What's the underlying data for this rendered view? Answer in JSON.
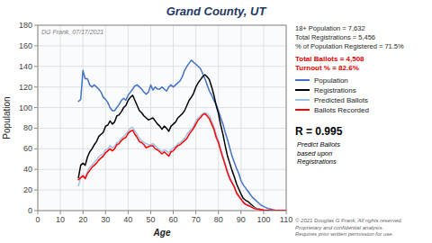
{
  "chart_data": {
    "type": "line",
    "title": "Grand County, UT",
    "xlabel": "Age",
    "ylabel": "Population",
    "annotations": [
      "DG Frank, 07/17/2021",
      "© 2021 Douglas G Frank, All rights reserved.\nProprietary and confidential analysis.\nRequires prior written permission for use.",
      "18+ Population = 7,632\nTotal Registrations = 5,456\n% of Population Registered = 71.5%",
      "Total Ballots = 4,508\nTurnout % = 82.6%",
      "R = 0.995",
      "Predict Ballots\nbased upon\nRegistrations"
    ],
    "x": [
      18,
      19,
      20,
      21,
      22,
      23,
      24,
      25,
      26,
      27,
      28,
      29,
      30,
      31,
      32,
      33,
      34,
      35,
      36,
      37,
      38,
      39,
      40,
      41,
      42,
      43,
      44,
      45,
      46,
      47,
      48,
      49,
      50,
      51,
      52,
      53,
      54,
      55,
      56,
      57,
      58,
      59,
      60,
      61,
      62,
      63,
      64,
      65,
      66,
      67,
      68,
      69,
      70,
      71,
      72,
      73,
      74,
      75,
      76,
      77,
      78,
      79,
      80,
      81,
      82,
      83,
      84,
      85,
      86,
      87,
      88,
      89,
      90,
      91,
      92,
      93,
      94,
      95,
      96,
      97,
      98,
      99,
      100,
      101,
      102,
      103,
      104,
      105,
      106,
      107,
      108,
      109,
      110
    ],
    "series": [
      {
        "name": "Population",
        "color": "#4472c4",
        "values": [
          106,
          108,
          136,
          128,
          128,
          122,
          120,
          122,
          120,
          118,
          115,
          110,
          108,
          105,
          100,
          97,
          97,
          100,
          103,
          107,
          109,
          107,
          112,
          115,
          118,
          121,
          122,
          120,
          118,
          115,
          113,
          115,
          122,
          117,
          120,
          118,
          118,
          120,
          118,
          116,
          120,
          122,
          120,
          122,
          124,
          126,
          130,
          136,
          140,
          143,
          146,
          144,
          142,
          140,
          138,
          133,
          128,
          122,
          116,
          112,
          107,
          103,
          97,
          90,
          84,
          76,
          69,
          61,
          53,
          47,
          41,
          36,
          29,
          25,
          22,
          19,
          16,
          13,
          11,
          9,
          7,
          5,
          4,
          3,
          2,
          1.5,
          1,
          0.5,
          0.3,
          0.2,
          0.1,
          0.1,
          0.1
        ]
      },
      {
        "name": "Registrations",
        "color": "#000000",
        "values": [
          32,
          44,
          46,
          44,
          52,
          57,
          60,
          64,
          67,
          72,
          74,
          76,
          82,
          83,
          87,
          84,
          86,
          92,
          93,
          96,
          100,
          102,
          107,
          110,
          112,
          107,
          102,
          97,
          95,
          92,
          90,
          88,
          89,
          90,
          87,
          84,
          82,
          79,
          82,
          80,
          77,
          82,
          84,
          86,
          90,
          92,
          94,
          97,
          102,
          107,
          110,
          114,
          120,
          124,
          127,
          130,
          132,
          130,
          127,
          120,
          112,
          102,
          94,
          83,
          74,
          63,
          53,
          46,
          39,
          33,
          26,
          21,
          16,
          12,
          10,
          9,
          7,
          5,
          3,
          2,
          1.5,
          1,
          0.5,
          0.3,
          0.2,
          0.1,
          0.1,
          0.1,
          0.05,
          0.05,
          0.02,
          0.01,
          0.01
        ]
      },
      {
        "name": "Predicted Ballots",
        "color": "#9dc3e6",
        "values": [
          24,
          32,
          33,
          32,
          38,
          42,
          44,
          47,
          49,
          52,
          54,
          55,
          59,
          60,
          63,
          61,
          62,
          66,
          67,
          70,
          72,
          74,
          77,
          80,
          81,
          77,
          74,
          70,
          68,
          66,
          65,
          64,
          64,
          65,
          63,
          61,
          59,
          57,
          59,
          58,
          56,
          59,
          61,
          62,
          65,
          66,
          68,
          70,
          74,
          77,
          79,
          82,
          87,
          90,
          92,
          94,
          95,
          94,
          92,
          87,
          81,
          74,
          68,
          60,
          53,
          46,
          38,
          33,
          28,
          24,
          19,
          15,
          12,
          9,
          7,
          6,
          5,
          3.5,
          2.5,
          2,
          1.5,
          1,
          0.6,
          0.4,
          0.3,
          0.2,
          0.1,
          0.1,
          0.05,
          0.02,
          0.01,
          0.01,
          0.005
        ]
      },
      {
        "name": "Ballots Recorded",
        "color": "#ff0000",
        "values": [
          30,
          32,
          34,
          31,
          36,
          39,
          42,
          44,
          46,
          49,
          51,
          53,
          56,
          58,
          60,
          58,
          60,
          64,
          65,
          68,
          70,
          71,
          75,
          77,
          78,
          74,
          71,
          67,
          66,
          64,
          61,
          62,
          63,
          63,
          60,
          59,
          57,
          55,
          57,
          55,
          53,
          57,
          58,
          61,
          63,
          64,
          66,
          68,
          70,
          74,
          77,
          80,
          84,
          88,
          90,
          93,
          94,
          92,
          89,
          84,
          79,
          71,
          66,
          58,
          51,
          44,
          37,
          31,
          27,
          23,
          17,
          14,
          11,
          8,
          6,
          5,
          4,
          3,
          2,
          1.5,
          1,
          0.8,
          0.5,
          0.3,
          0.2,
          0.1,
          0.1,
          0.1,
          0.05,
          0.02,
          0.01,
          0.01,
          0.005
        ]
      }
    ],
    "xlim": [
      0,
      110
    ],
    "ylim": [
      0,
      180
    ],
    "xticks": [
      0,
      10,
      20,
      30,
      40,
      50,
      60,
      70,
      80,
      90,
      100,
      110
    ],
    "yticks": [
      0,
      20,
      40,
      60,
      80,
      100,
      120,
      140,
      160,
      180
    ],
    "grid": true,
    "legend": "right"
  }
}
